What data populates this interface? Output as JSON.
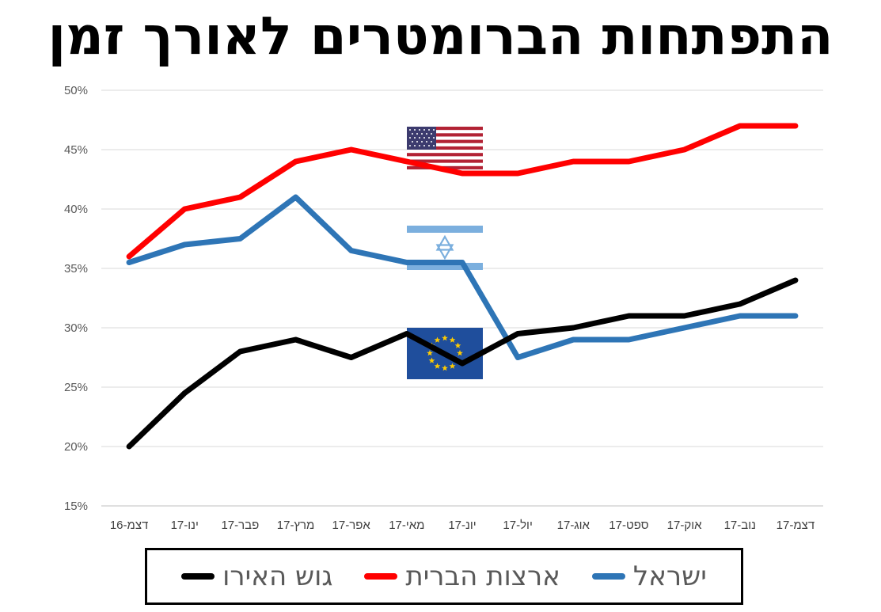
{
  "title": "התפתחות הברומטרים לאורך זמן",
  "colors": {
    "israel": "#2E75B6",
    "usa": "#FF0000",
    "euro": "#000000",
    "grid": "#D9D9D9"
  },
  "flag_icons": [
    "usa-flag-icon",
    "israel-flag-icon",
    "eu-flag-icon"
  ],
  "chart_data": {
    "type": "line",
    "title": "התפתחות הברומטרים לאורך זמן",
    "categories": [
      "דצמ-16",
      "ינו-17",
      "פבר-17",
      "מרץ-17",
      "אפר-17",
      "מאי-17",
      "יונ-17",
      "יול-17",
      "אוג-17",
      "ספט-17",
      "אוק-17",
      "נוב-17",
      "דצמ-17"
    ],
    "y_ticks": [
      "15%",
      "20%",
      "25%",
      "30%",
      "35%",
      "40%",
      "45%",
      "50%"
    ],
    "ylim": [
      15,
      50
    ],
    "grid": true,
    "legend_position": "bottom",
    "series": [
      {
        "name": "ישראל",
        "color": "#2E75B6",
        "values": [
          35.5,
          37,
          37.5,
          41,
          36.5,
          35.5,
          35.5,
          27.5,
          29,
          29,
          30,
          31,
          31
        ]
      },
      {
        "name": "ארצות הברית",
        "color": "#FF0000",
        "values": [
          36,
          40,
          41,
          44,
          45,
          44,
          43,
          43,
          44,
          44,
          45,
          47,
          47
        ]
      },
      {
        "name": "גוש האירו",
        "color": "#000000",
        "values": [
          20,
          24.5,
          28,
          29,
          27.5,
          29.5,
          27,
          29.5,
          30,
          31,
          31,
          32,
          34
        ]
      }
    ]
  }
}
